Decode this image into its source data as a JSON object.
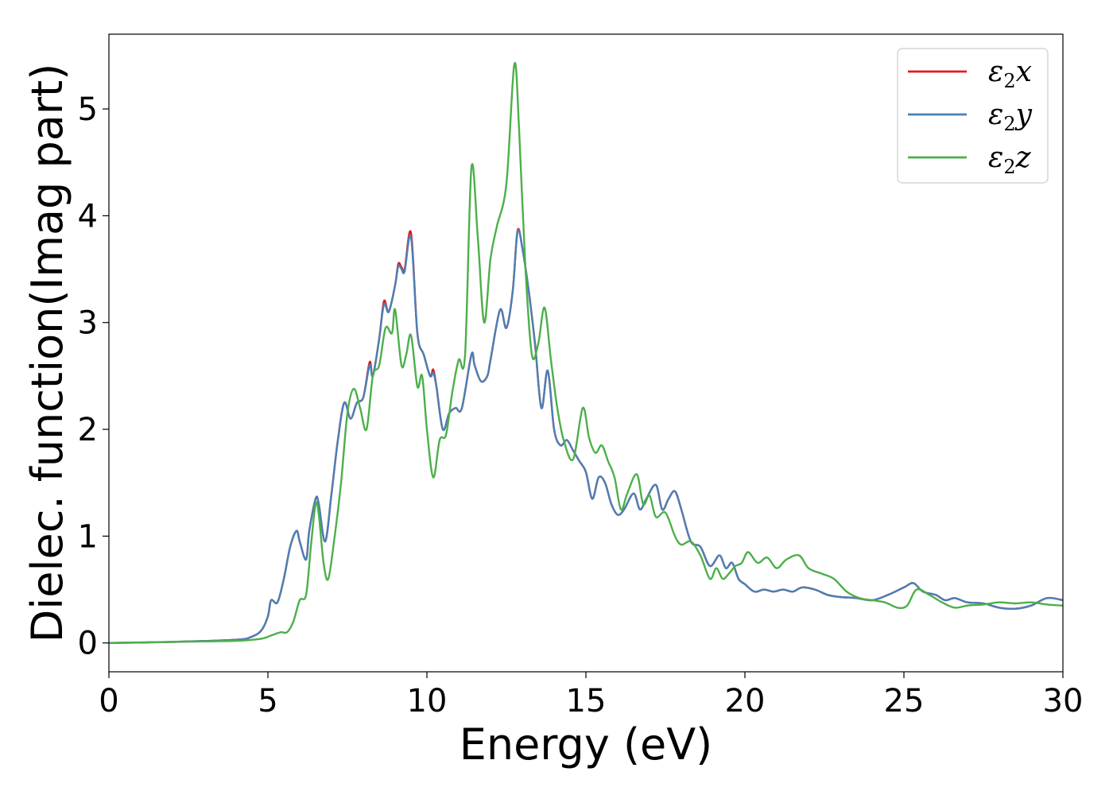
{
  "chart_data": {
    "type": "line",
    "xlabel": "Energy (eV)",
    "ylabel": "Dielec. function(Imag part)",
    "xlim": [
      0,
      30
    ],
    "ylim": [
      -0.27,
      5.7
    ],
    "xticks": [
      "0",
      "5",
      "10",
      "15",
      "20",
      "25",
      "30"
    ],
    "yticks": [
      "0",
      "1",
      "2",
      "3",
      "4",
      "5"
    ],
    "grid": false,
    "legend_position": "top-right",
    "series": [
      {
        "name": "ε2x",
        "legend_main": "ε",
        "legend_sub": "2",
        "legend_suffix": "x",
        "color": "#e41a1c",
        "x": [
          0,
          2,
          4,
          4.5,
          4.8,
          5.0,
          5.1,
          5.3,
          5.5,
          5.7,
          5.9,
          6.0,
          6.2,
          6.3,
          6.5,
          6.6,
          6.8,
          7.0,
          7.2,
          7.4,
          7.6,
          7.8,
          8.0,
          8.2,
          8.3,
          8.5,
          8.65,
          8.8,
          9.0,
          9.1,
          9.2,
          9.3,
          9.5,
          9.7,
          9.9,
          10.1,
          10.2,
          10.3,
          10.5,
          10.7,
          10.9,
          11.1,
          11.4,
          11.5,
          11.7,
          11.9,
          12.0,
          12.3,
          12.5,
          12.7,
          12.85,
          13.0,
          13.2,
          13.4,
          13.6,
          13.8,
          14.0,
          14.2,
          14.4,
          14.6,
          14.8,
          15.0,
          15.2,
          15.4,
          15.6,
          15.8,
          16.0,
          16.2,
          16.5,
          16.7,
          16.9,
          17.2,
          17.4,
          17.6,
          17.8,
          18.0,
          18.3,
          18.6,
          18.9,
          19.2,
          19.4,
          19.6,
          19.8,
          20.0,
          20.3,
          20.6,
          20.9,
          21.2,
          21.5,
          21.8,
          22.2,
          22.6,
          23.0,
          23.5,
          24.0,
          24.5,
          25.0,
          25.3,
          25.6,
          26.0,
          26.3,
          26.6,
          27.0,
          27.5,
          28.0,
          28.5,
          29.0,
          29.5,
          30
        ],
        "y": [
          0.0,
          0.01,
          0.03,
          0.06,
          0.12,
          0.25,
          0.4,
          0.38,
          0.6,
          0.9,
          1.05,
          0.95,
          0.78,
          1.05,
          1.35,
          1.3,
          0.95,
          1.4,
          1.9,
          2.25,
          2.1,
          2.25,
          2.3,
          2.63,
          2.5,
          2.85,
          3.2,
          3.1,
          3.35,
          3.55,
          3.52,
          3.5,
          3.84,
          2.9,
          2.7,
          2.5,
          2.56,
          2.4,
          2.0,
          2.15,
          2.2,
          2.2,
          2.7,
          2.6,
          2.45,
          2.5,
          2.65,
          3.12,
          2.95,
          3.3,
          3.86,
          3.7,
          3.3,
          2.8,
          2.2,
          2.55,
          2.0,
          1.85,
          1.9,
          1.8,
          1.7,
          1.6,
          1.35,
          1.55,
          1.5,
          1.3,
          1.2,
          1.25,
          1.4,
          1.25,
          1.35,
          1.48,
          1.25,
          1.35,
          1.42,
          1.25,
          0.95,
          0.9,
          0.72,
          0.82,
          0.7,
          0.75,
          0.6,
          0.55,
          0.48,
          0.5,
          0.48,
          0.5,
          0.48,
          0.52,
          0.5,
          0.45,
          0.43,
          0.42,
          0.4,
          0.45,
          0.52,
          0.56,
          0.48,
          0.45,
          0.4,
          0.42,
          0.38,
          0.37,
          0.33,
          0.32,
          0.35,
          0.42,
          0.4
        ]
      },
      {
        "name": "ε2y",
        "legend_main": "ε",
        "legend_sub": "2",
        "legend_suffix": "y",
        "color": "#4a7fb5",
        "x": [
          0,
          2,
          4,
          4.5,
          4.8,
          5.0,
          5.1,
          5.3,
          5.5,
          5.7,
          5.9,
          6.0,
          6.2,
          6.3,
          6.5,
          6.6,
          6.8,
          7.0,
          7.2,
          7.4,
          7.6,
          7.8,
          8.0,
          8.2,
          8.3,
          8.5,
          8.65,
          8.8,
          9.0,
          9.1,
          9.2,
          9.3,
          9.5,
          9.7,
          9.9,
          10.1,
          10.2,
          10.3,
          10.5,
          10.7,
          10.9,
          11.1,
          11.4,
          11.5,
          11.7,
          11.9,
          12.0,
          12.3,
          12.5,
          12.7,
          12.85,
          13.0,
          13.2,
          13.4,
          13.6,
          13.8,
          14.0,
          14.2,
          14.4,
          14.6,
          14.8,
          15.0,
          15.2,
          15.4,
          15.6,
          15.8,
          16.0,
          16.2,
          16.5,
          16.7,
          16.9,
          17.2,
          17.4,
          17.6,
          17.8,
          18.0,
          18.3,
          18.6,
          18.9,
          19.2,
          19.4,
          19.6,
          19.8,
          20.0,
          20.3,
          20.6,
          20.9,
          21.2,
          21.5,
          21.8,
          22.2,
          22.6,
          23.0,
          23.5,
          24.0,
          24.5,
          25.0,
          25.3,
          25.6,
          26.0,
          26.3,
          26.6,
          27.0,
          27.5,
          28.0,
          28.5,
          29.0,
          29.5,
          30
        ],
        "y": [
          0.0,
          0.01,
          0.03,
          0.06,
          0.12,
          0.25,
          0.4,
          0.38,
          0.6,
          0.9,
          1.05,
          0.95,
          0.78,
          1.05,
          1.35,
          1.3,
          0.95,
          1.4,
          1.9,
          2.25,
          2.1,
          2.25,
          2.3,
          2.6,
          2.5,
          2.85,
          3.17,
          3.1,
          3.35,
          3.53,
          3.5,
          3.48,
          3.8,
          2.9,
          2.7,
          2.5,
          2.53,
          2.4,
          2.0,
          2.15,
          2.2,
          2.2,
          2.7,
          2.6,
          2.45,
          2.5,
          2.65,
          3.12,
          2.95,
          3.3,
          3.85,
          3.7,
          3.3,
          2.8,
          2.2,
          2.55,
          2.0,
          1.85,
          1.9,
          1.8,
          1.7,
          1.6,
          1.35,
          1.55,
          1.5,
          1.3,
          1.2,
          1.25,
          1.4,
          1.25,
          1.35,
          1.48,
          1.25,
          1.35,
          1.42,
          1.25,
          0.95,
          0.9,
          0.72,
          0.82,
          0.7,
          0.75,
          0.6,
          0.55,
          0.48,
          0.5,
          0.48,
          0.5,
          0.48,
          0.52,
          0.5,
          0.45,
          0.43,
          0.42,
          0.4,
          0.45,
          0.52,
          0.56,
          0.48,
          0.45,
          0.4,
          0.42,
          0.38,
          0.37,
          0.33,
          0.32,
          0.35,
          0.42,
          0.4
        ]
      },
      {
        "name": "ε2z",
        "legend_main": "ε",
        "legend_sub": "2",
        "legend_suffix": "z",
        "color": "#4daf4a",
        "x": [
          0,
          2,
          4,
          4.8,
          5.1,
          5.4,
          5.6,
          5.8,
          6.0,
          6.2,
          6.35,
          6.5,
          6.6,
          6.75,
          6.9,
          7.1,
          7.3,
          7.5,
          7.7,
          7.9,
          8.1,
          8.3,
          8.5,
          8.7,
          8.9,
          9.0,
          9.2,
          9.35,
          9.5,
          9.7,
          9.85,
          10.0,
          10.2,
          10.4,
          10.6,
          10.8,
          11.0,
          11.2,
          11.4,
          11.6,
          11.8,
          12.0,
          12.2,
          12.5,
          12.75,
          12.9,
          13.1,
          13.3,
          13.5,
          13.7,
          13.9,
          14.1,
          14.3,
          14.6,
          14.9,
          15.1,
          15.3,
          15.5,
          15.7,
          15.9,
          16.1,
          16.3,
          16.6,
          16.8,
          17.0,
          17.2,
          17.5,
          17.8,
          18.0,
          18.3,
          18.6,
          18.9,
          19.1,
          19.3,
          19.5,
          19.7,
          19.9,
          20.1,
          20.4,
          20.7,
          21.0,
          21.3,
          21.7,
          22.0,
          22.4,
          22.8,
          23.2,
          23.6,
          24.0,
          24.4,
          24.8,
          25.1,
          25.4,
          25.8,
          26.2,
          26.6,
          27.0,
          27.5,
          28.0,
          28.5,
          29.0,
          29.5,
          30
        ],
        "y": [
          0.0,
          0.01,
          0.02,
          0.04,
          0.07,
          0.1,
          0.1,
          0.2,
          0.4,
          0.45,
          0.9,
          1.3,
          1.2,
          0.75,
          0.6,
          1.0,
          1.5,
          2.15,
          2.38,
          2.2,
          2.0,
          2.5,
          2.6,
          2.95,
          2.9,
          3.12,
          2.6,
          2.7,
          2.88,
          2.4,
          2.5,
          2.0,
          1.55,
          1.9,
          1.95,
          2.35,
          2.65,
          2.7,
          4.45,
          3.8,
          3.0,
          3.6,
          3.9,
          4.3,
          5.42,
          4.8,
          3.5,
          2.7,
          2.8,
          3.14,
          2.65,
          2.2,
          1.9,
          1.72,
          2.2,
          1.92,
          1.78,
          1.85,
          1.7,
          1.55,
          1.25,
          1.4,
          1.58,
          1.3,
          1.38,
          1.18,
          1.22,
          1.0,
          0.92,
          0.95,
          0.82,
          0.6,
          0.7,
          0.6,
          0.65,
          0.72,
          0.75,
          0.85,
          0.75,
          0.8,
          0.7,
          0.78,
          0.82,
          0.7,
          0.65,
          0.6,
          0.48,
          0.42,
          0.4,
          0.38,
          0.33,
          0.35,
          0.5,
          0.45,
          0.38,
          0.33,
          0.35,
          0.36,
          0.38,
          0.37,
          0.38,
          0.36,
          0.35
        ]
      }
    ]
  }
}
